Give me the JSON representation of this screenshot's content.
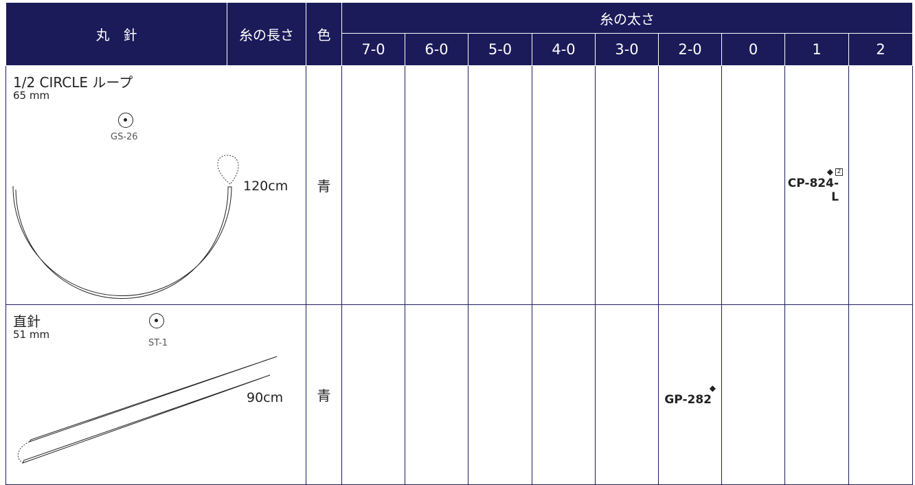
{
  "table": {
    "header": {
      "needle": "丸　針",
      "length": "糸の長さ",
      "color": "色",
      "size": "糸の太さ",
      "sizes": [
        "7-0",
        "6-0",
        "5-0",
        "4-0",
        "3-0",
        "2-0",
        "0",
        "1",
        "2"
      ]
    },
    "rows": [
      {
        "name": "1/2 CIRCLE ループ",
        "needle_length": "65 mm",
        "point": "GS-26",
        "thread_length": "120cm",
        "color": "青",
        "cells": [
          null,
          null,
          null,
          null,
          null,
          null,
          null,
          {
            "mark": "◆",
            "note": "2",
            "code": "CP-824-L"
          },
          null
        ]
      },
      {
        "name": "直針",
        "needle_length": "51 mm",
        "point": "ST-1",
        "thread_length": "90cm",
        "color": "青",
        "cells": [
          null,
          null,
          null,
          null,
          null,
          {
            "mark": "◆",
            "code": "GP-282"
          },
          null,
          null,
          null
        ]
      }
    ]
  }
}
